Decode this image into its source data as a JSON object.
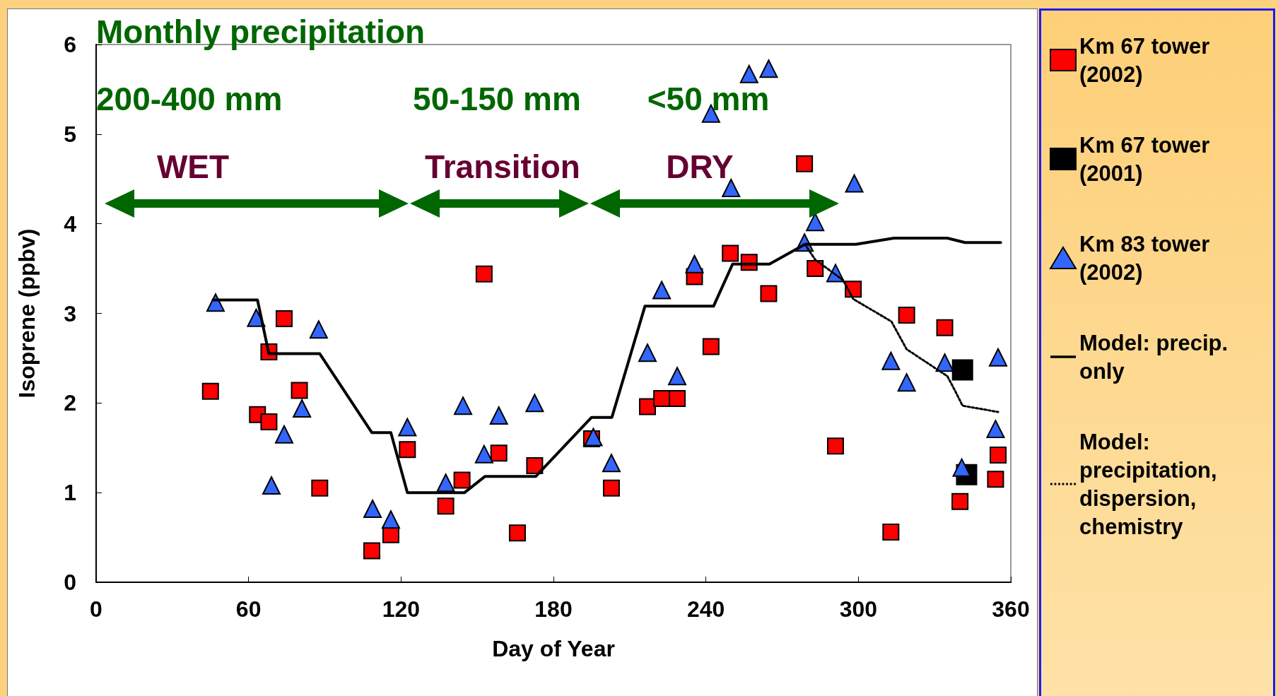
{
  "chart_data": {
    "type": "scatter",
    "xlabel": "Day of Year",
    "ylabel": "Isoprene (ppbv)",
    "xlim": [
      0,
      360
    ],
    "xticks": [
      0,
      60,
      120,
      180,
      240,
      300,
      360
    ],
    "ylim": [
      0,
      6
    ],
    "yticks": [
      0,
      1,
      2,
      3,
      4,
      5,
      6
    ],
    "grid": false,
    "legend": "right",
    "annotations": [
      "Monthly precipitation",
      "200-400 mm",
      "50-150 mm",
      "<50 mm",
      "WET",
      "Transition",
      "DRY"
    ],
    "series": [
      {
        "name": "Km 67 tower (2002)",
        "marker": "square",
        "color": "#ff0000",
        "x": [
          45,
          63.5,
          68,
          68,
          74,
          80,
          88,
          108.5,
          116,
          122.5,
          137.6,
          144,
          152.7,
          158.5,
          165.8,
          172.6,
          195,
          202.8,
          217,
          222.6,
          228.7,
          235.5,
          242,
          249.6,
          257,
          264.7,
          278.8,
          283,
          291,
          298,
          312.8,
          319,
          334,
          340,
          355,
          354
        ],
        "values": [
          2.13,
          1.87,
          1.79,
          2.57,
          2.94,
          2.14,
          1.05,
          0.35,
          0.53,
          1.48,
          0.85,
          1.14,
          3.44,
          1.44,
          0.55,
          1.3,
          1.6,
          1.05,
          1.96,
          2.05,
          2.05,
          3.41,
          2.63,
          3.67,
          3.57,
          3.22,
          4.67,
          3.5,
          1.52,
          3.27,
          0.56,
          2.98,
          2.84,
          0.9,
          1.42,
          1.15
        ]
      },
      {
        "name": "Km 67 tower (2001)",
        "marker": "square",
        "color": "#000000",
        "x": [
          341,
          342.6
        ],
        "values": [
          2.37,
          1.2
        ]
      },
      {
        "name": "Km 83 tower (2002)",
        "marker": "triangle",
        "color": "#3366ff",
        "x": [
          47,
          63,
          69,
          74,
          81,
          87.6,
          108.8,
          116,
          122.5,
          137.6,
          144.4,
          152.7,
          158.5,
          172.6,
          195.7,
          202.8,
          217,
          222.6,
          228.7,
          235.5,
          242,
          249.9,
          257,
          264.7,
          278.8,
          283,
          291,
          298.4,
          312.8,
          319,
          334,
          340.7,
          355,
          354
        ],
        "values": [
          3.12,
          2.95,
          1.08,
          1.65,
          1.94,
          2.82,
          0.82,
          0.7,
          1.73,
          1.11,
          1.97,
          1.43,
          1.86,
          2.0,
          1.62,
          1.33,
          2.56,
          3.26,
          2.3,
          3.55,
          5.23,
          4.4,
          5.67,
          5.73,
          3.79,
          4.02,
          3.45,
          4.45,
          2.47,
          2.23,
          2.45,
          1.28,
          2.51,
          1.71
        ]
      },
      {
        "name": "Model: precip. only",
        "type": "line",
        "marker": "none",
        "line_style": "solid",
        "color": "#000000",
        "x": [
          46,
          63.5,
          68,
          88,
          108.5,
          116,
          122.5,
          145,
          153,
          173,
          195,
          203,
          216,
          243,
          250.5,
          265,
          279,
          299,
          314,
          335,
          342,
          356
        ],
        "values": [
          3.15,
          3.15,
          2.55,
          2.55,
          1.67,
          1.67,
          1.0,
          1.0,
          1.18,
          1.18,
          1.84,
          1.84,
          3.08,
          3.08,
          3.55,
          3.55,
          3.77,
          3.77,
          3.84,
          3.84,
          3.79,
          3.79
        ]
      },
      {
        "name": "Model: precipitation, dispersion, chemistry",
        "type": "line",
        "marker": "none",
        "line_style": "dotted",
        "color": "#000000",
        "x": [
          279,
          283,
          294,
          298,
          313,
          319,
          335,
          338,
          341,
          355
        ],
        "values": [
          3.77,
          3.6,
          3.37,
          3.16,
          2.91,
          2.6,
          2.3,
          2.14,
          1.97,
          1.9
        ]
      }
    ]
  }
}
